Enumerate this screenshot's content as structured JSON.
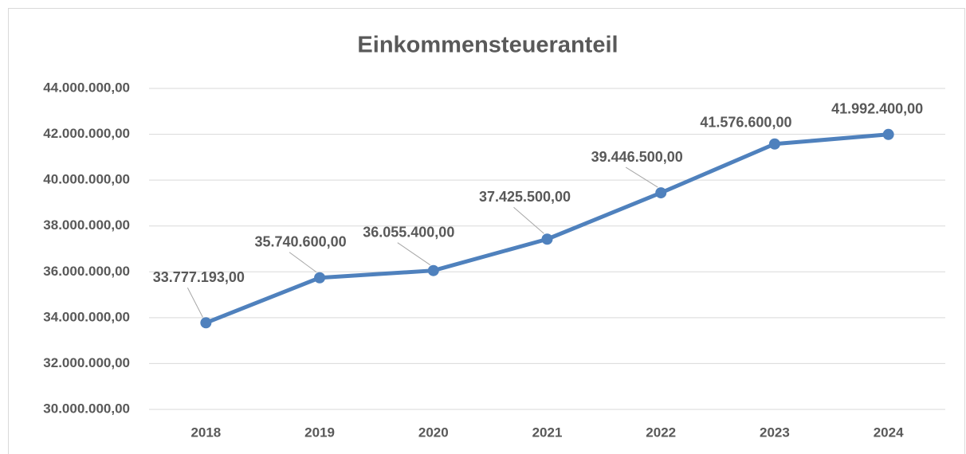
{
  "chart_data": {
    "type": "line",
    "title": "Einkommensteueranteil",
    "categories": [
      "2018",
      "2019",
      "2020",
      "2021",
      "2022",
      "2023",
      "2024"
    ],
    "series": [
      {
        "name": "Einkommensteueranteil",
        "color": "#4f81bd",
        "values": [
          33777193,
          35740600,
          36055400,
          37425500,
          39446500,
          41576600,
          41992400
        ],
        "value_labels": [
          "33.777.193,00",
          "35.740.600,00",
          "36.055.400,00",
          "37.425.500,00",
          "39.446.500,00",
          "41.576.600,00",
          "41.992.400,00"
        ]
      }
    ],
    "ylim": [
      30000000,
      44000000
    ],
    "yticks": [
      {
        "value": 30000000,
        "label": "30.000.000,00"
      },
      {
        "value": 32000000,
        "label": "32.000.000,00"
      },
      {
        "value": 34000000,
        "label": "34.000.000,00"
      },
      {
        "value": 36000000,
        "label": "36.000.000,00"
      },
      {
        "value": 38000000,
        "label": "38.000.000,00"
      },
      {
        "value": 40000000,
        "label": "40.000.000,00"
      },
      {
        "value": 42000000,
        "label": "42.000.000,00"
      },
      {
        "value": 44000000,
        "label": "44.000.000,00"
      }
    ],
    "grid": true
  }
}
